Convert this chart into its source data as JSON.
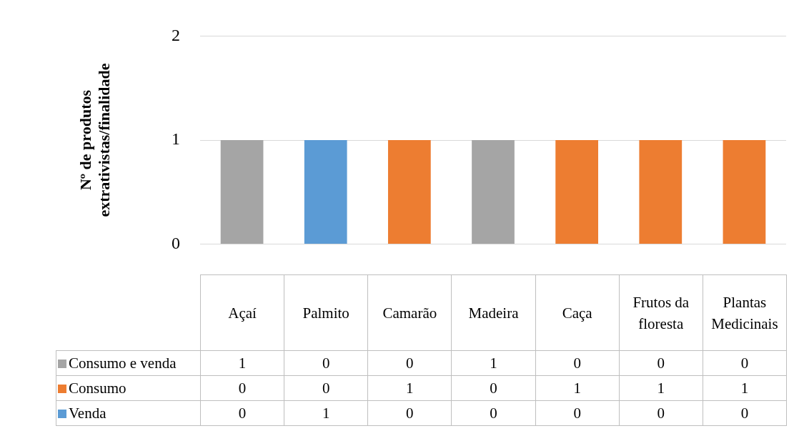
{
  "chart_data": {
    "type": "bar",
    "stacked": true,
    "ylabel": "Nº de produtos extrativistas/finalidade",
    "categories": [
      "Açaí",
      "Palmito",
      "Camarão",
      "Madeira",
      "Caça",
      "Frutos da floresta",
      "Plantas Medicinais"
    ],
    "series": [
      {
        "name": "Consumo e venda",
        "color": "#a5a5a5",
        "values": [
          1,
          0,
          0,
          1,
          0,
          0,
          0
        ]
      },
      {
        "name": "Consumo",
        "color": "#ed7d31",
        "values": [
          0,
          0,
          1,
          0,
          1,
          1,
          1
        ]
      },
      {
        "name": "Venda",
        "color": "#5b9bd5",
        "values": [
          0,
          1,
          0,
          0,
          0,
          0,
          0
        ]
      }
    ],
    "ylim": [
      0,
      2
    ],
    "yticks": [
      0,
      1,
      2
    ],
    "grid": "y",
    "legend": "bottom",
    "data_labels": true
  }
}
